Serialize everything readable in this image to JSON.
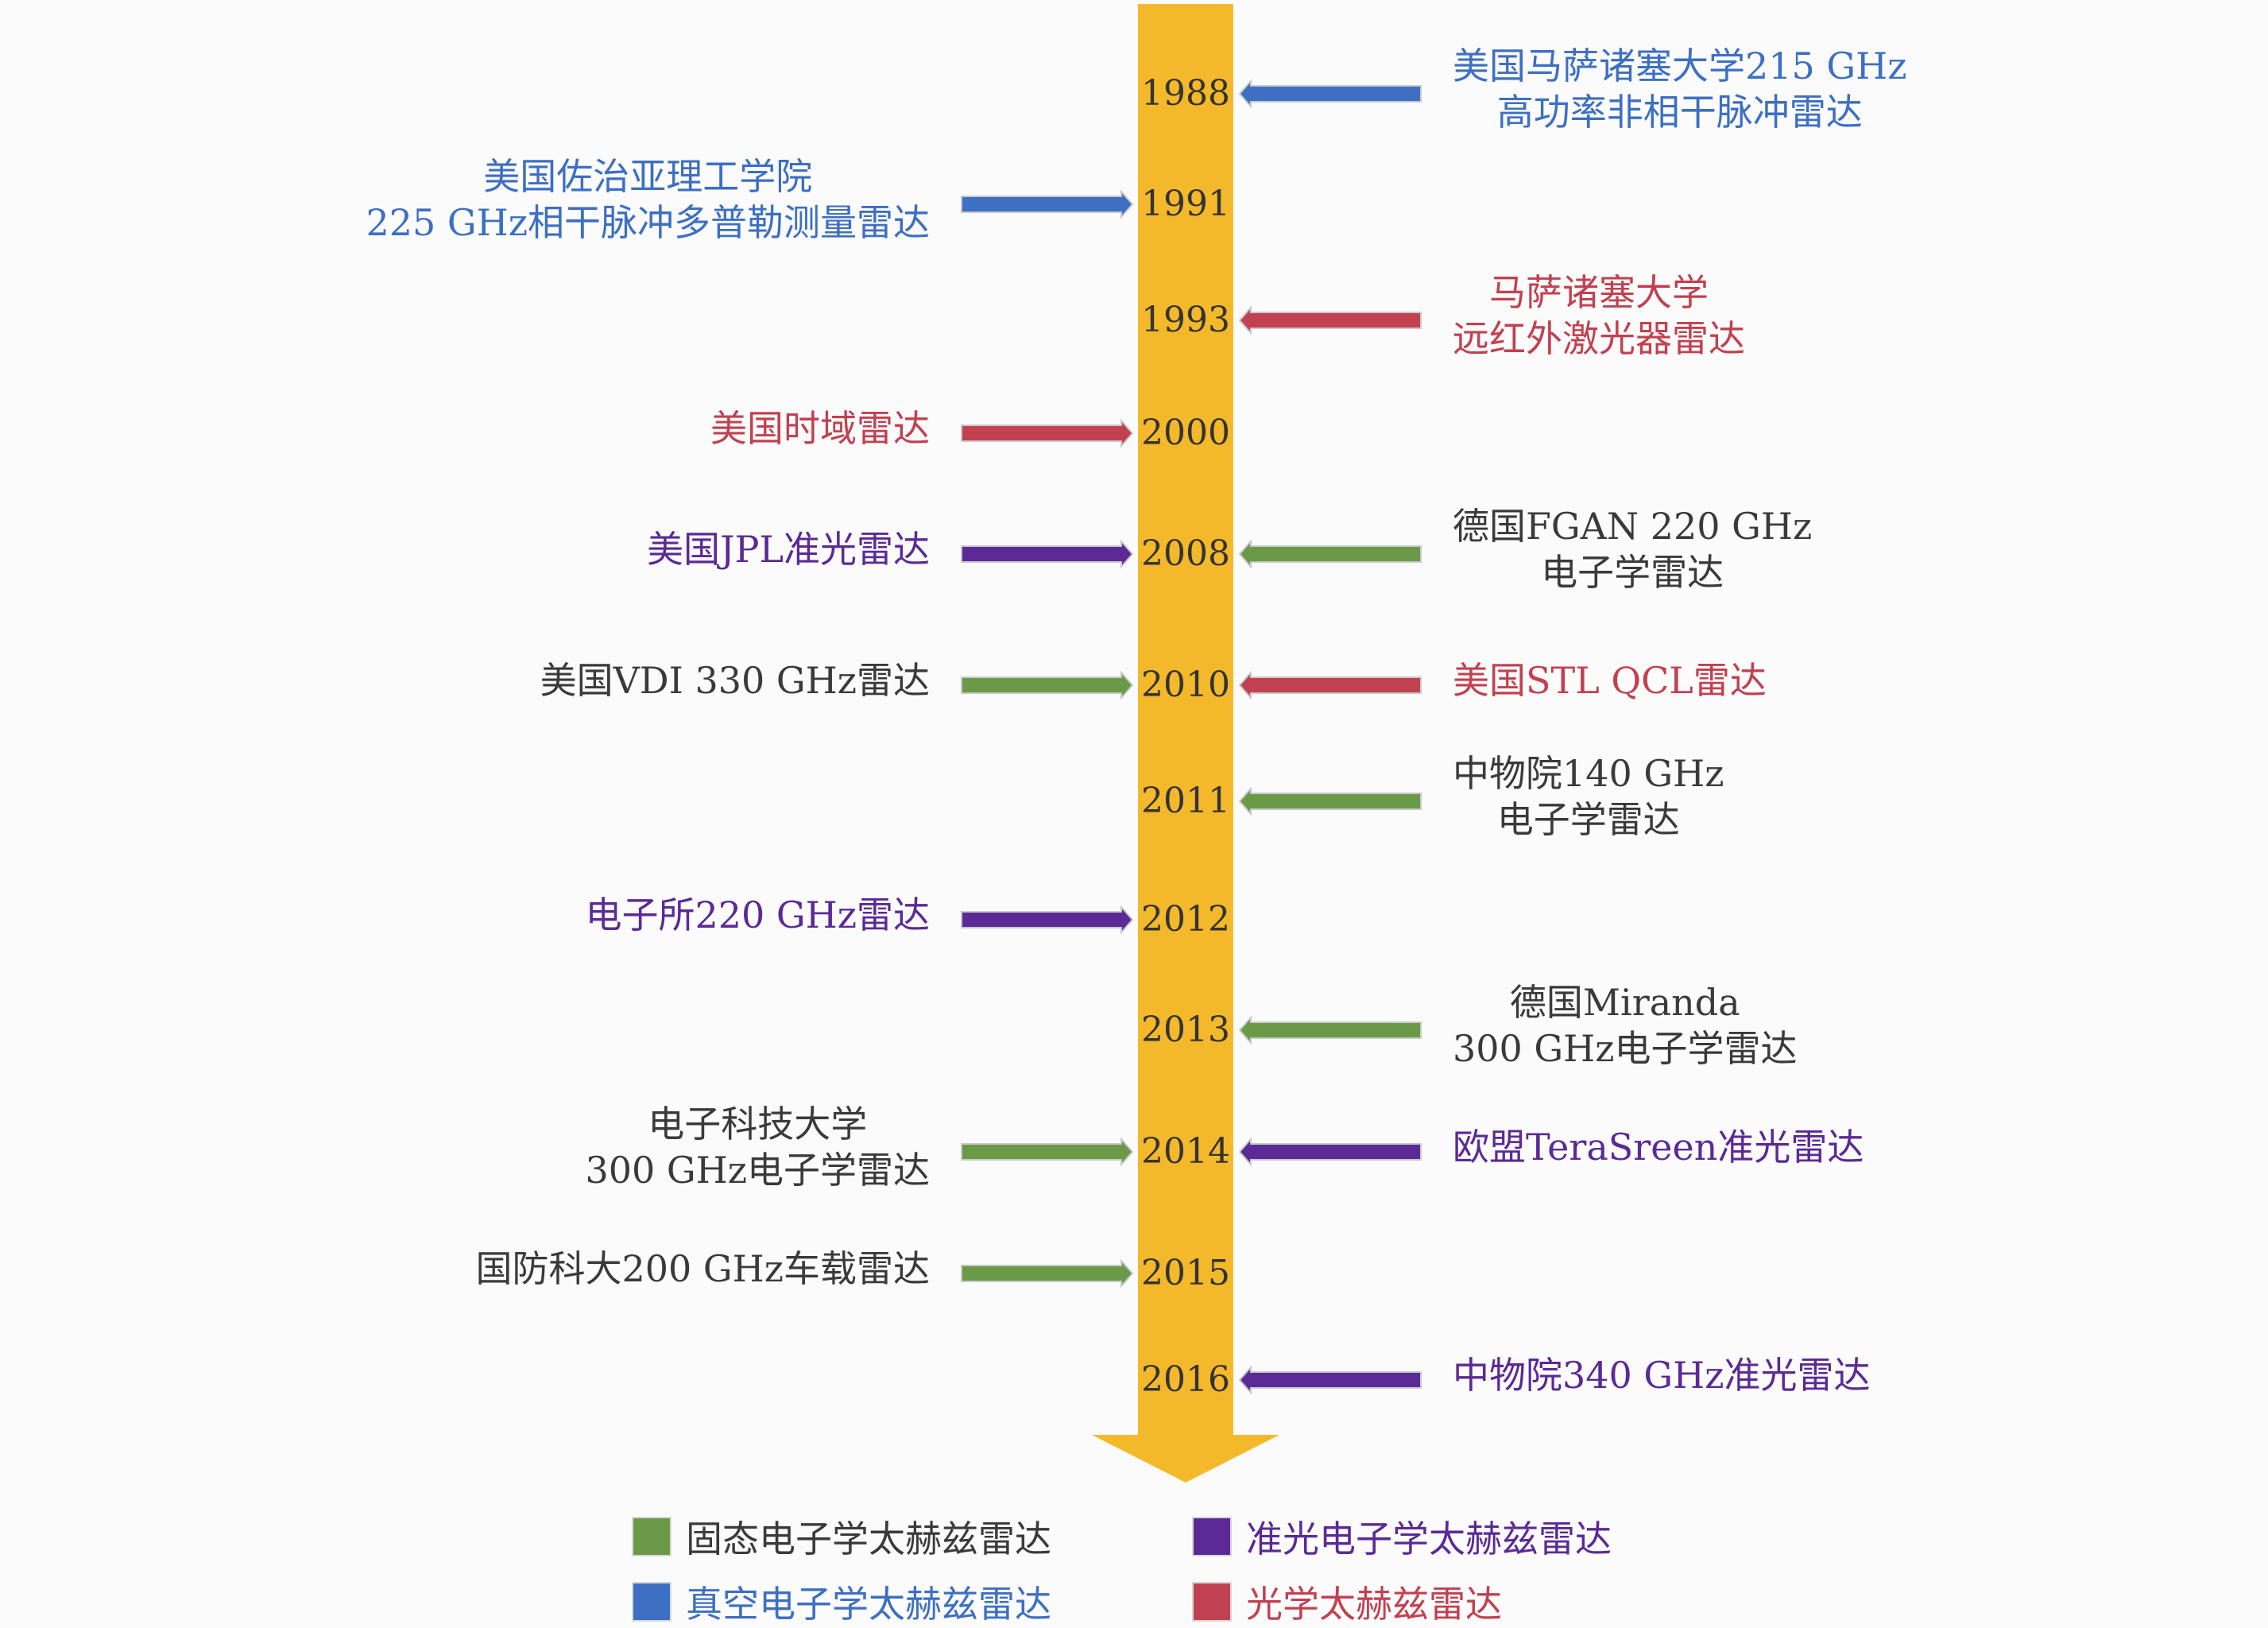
{
  "colors": {
    "timeline": "#F4B92B",
    "solid_state": "#6A9A48",
    "vacuum": "#3D6FC3",
    "quasi_optical": "#5B2A96",
    "optical": "#C24151",
    "text_default": "#3a3a3a"
  },
  "events": [
    {
      "year": "1988",
      "side": "right",
      "category": "vacuum",
      "lines": [
        "美国马萨诸塞大学215 GHz",
        "高功率非相干脉冲雷达"
      ]
    },
    {
      "year": "1991",
      "side": "left",
      "category": "vacuum",
      "lines": [
        "美国佐治亚理工学院",
        "225 GHz相干脉冲多普勒测量雷达"
      ]
    },
    {
      "year": "1993",
      "side": "right",
      "category": "optical",
      "lines": [
        "马萨诸塞大学",
        "远红外激光器雷达"
      ]
    },
    {
      "year": "2000",
      "side": "left",
      "category": "optical",
      "lines": [
        "美国时域雷达"
      ]
    },
    {
      "year": "2008",
      "side": "left",
      "category": "quasi_optical",
      "lines": [
        "美国JPL准光雷达"
      ]
    },
    {
      "year": "2008",
      "side": "right",
      "category": "solid_state",
      "lines": [
        "德国FGAN 220 GHz",
        "电子学雷达"
      ]
    },
    {
      "year": "2010",
      "side": "left",
      "category": "solid_state",
      "lines": [
        "美国VDI 330 GHz雷达"
      ]
    },
    {
      "year": "2010",
      "side": "right",
      "category": "optical",
      "lines": [
        "美国STL QCL雷达"
      ]
    },
    {
      "year": "2011",
      "side": "right",
      "category": "solid_state",
      "lines": [
        "中物院140 GHz",
        "电子学雷达"
      ]
    },
    {
      "year": "2012",
      "side": "left",
      "category": "quasi_optical",
      "lines": [
        "电子所220 GHz雷达"
      ]
    },
    {
      "year": "2013",
      "side": "right",
      "category": "solid_state",
      "lines": [
        "德国Miranda",
        "300 GHz电子学雷达"
      ]
    },
    {
      "year": "2014",
      "side": "left",
      "category": "solid_state",
      "lines": [
        "电子科技大学",
        "300 GHz电子学雷达"
      ]
    },
    {
      "year": "2014",
      "side": "right",
      "category": "quasi_optical",
      "lines": [
        "欧盟TeraSreen准光雷达"
      ]
    },
    {
      "year": "2015",
      "side": "left",
      "category": "solid_state",
      "lines": [
        "国防科大200 GHz车载雷达"
      ]
    },
    {
      "year": "2016",
      "side": "right",
      "category": "quasi_optical",
      "lines": [
        "中物院340 GHz准光雷达"
      ]
    }
  ],
  "years": [
    "1988",
    "1991",
    "1993",
    "2000",
    "2008",
    "2010",
    "2011",
    "2012",
    "2013",
    "2014",
    "2015",
    "2016"
  ],
  "legend": [
    {
      "category": "solid_state",
      "label": "固态电子学太赫兹雷达"
    },
    {
      "category": "quasi_optical",
      "label": "准光电子学太赫兹雷达"
    },
    {
      "category": "vacuum",
      "label": "真空电子学太赫兹雷达"
    },
    {
      "category": "optical",
      "label": "光学太赫兹雷达"
    }
  ]
}
